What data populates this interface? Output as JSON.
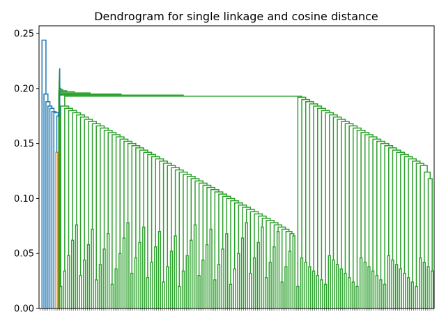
{
  "chart_data": {
    "type": "dendrogram",
    "title": "Dendrogram for single linkage and cosine distance",
    "xlabel": "",
    "ylabel": "",
    "ylim": [
      0,
      0.257
    ],
    "yticks": [
      0.0,
      0.05,
      0.1,
      0.15,
      0.2,
      0.25
    ],
    "ytick_labels": [
      "0.00",
      "0.05",
      "0.10",
      "0.15",
      "0.20",
      "0.25"
    ],
    "grid": false,
    "legend": "none",
    "colors": {
      "main": "#2ca02c",
      "outlier": "#1f77b4",
      "pair": "#ff7f0e"
    },
    "outlier_heights": [
      0.244,
      0.195,
      0.188,
      0.184,
      0.182,
      0.179,
      0.178,
      0.175
    ],
    "orange_pair_height": 0.142,
    "green_chain_heights": [
      0.171,
      0.167,
      0.162,
      0.16,
      0.159,
      0.158,
      0.158,
      0.157,
      0.155,
      0.149,
      0.147,
      0.145,
      0.144,
      0.143,
      0.142,
      0.141,
      0.14,
      0.139,
      0.139,
      0.138,
      0.137,
      0.136,
      0.136,
      0.135,
      0.134,
      0.133,
      0.132,
      0.131,
      0.131,
      0.131,
      0.13
    ],
    "green_mid_heights": [
      0.128,
      0.127,
      0.126,
      0.125,
      0.124,
      0.123,
      0.122,
      0.121,
      0.12,
      0.119,
      0.118,
      0.118,
      0.117,
      0.116,
      0.115,
      0.114,
      0.113,
      0.112,
      0.111,
      0.11,
      0.109,
      0.108,
      0.107,
      0.106,
      0.105,
      0.104,
      0.103,
      0.102,
      0.1,
      0.099,
      0.097,
      0.096,
      0.095,
      0.094,
      0.093,
      0.092,
      0.091,
      0.089,
      0.087,
      0.086,
      0.085,
      0.083,
      0.08,
      0.075,
      0.068,
      0.064,
      0.062,
      0.06,
      0.057,
      0.055,
      0.053
    ],
    "right_cluster_heights": [
      0.13,
      0.124,
      0.118
    ]
  }
}
